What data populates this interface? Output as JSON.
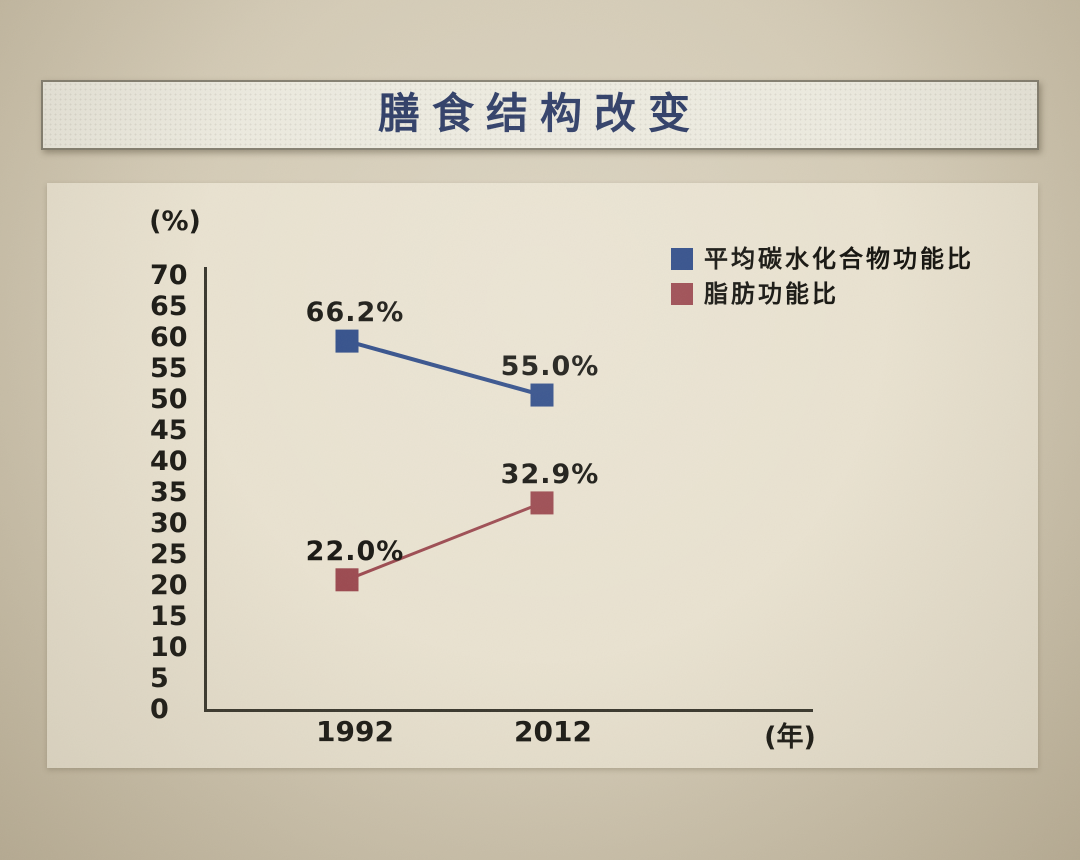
{
  "page": {
    "title": "膳食结构改变"
  },
  "chart_data": {
    "type": "line",
    "title": "膳食结构改变",
    "categories": [
      "1992",
      "2012"
    ],
    "series": [
      {
        "name": "平均碳水化合物功能比",
        "color": "#2f4c88",
        "values": [
          66.2,
          55.0
        ],
        "labels": [
          "66.2%",
          "55.0%"
        ],
        "marker_axis_y": [
          59.5,
          50.8
        ]
      },
      {
        "name": "脂肪功能比",
        "color": "#9c4a50",
        "values": [
          22.0,
          32.9
        ],
        "labels": [
          "22.0%",
          "32.9%"
        ],
        "marker_axis_y": [
          21.0,
          33.4
        ]
      }
    ],
    "xlabel": "(年)",
    "ylabel": "(%)",
    "ylim": [
      0,
      70
    ],
    "y_ticks": [
      70,
      65,
      60,
      55,
      50,
      45,
      40,
      35,
      30,
      25,
      20,
      15,
      10,
      5,
      0
    ],
    "grid": false,
    "legend_position": "top-right",
    "marker_shape": "square"
  },
  "colors": {
    "page_background": "#d4cbb6",
    "panel_background": "#e9e2d0",
    "title_bar_background": "#eceadf",
    "title_text": "#2b3a64",
    "axis": "#3a382e",
    "tick_text": "#1c1b16"
  }
}
